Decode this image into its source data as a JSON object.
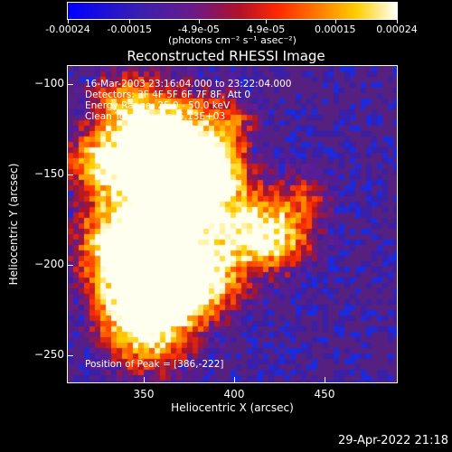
{
  "colorbar": {
    "tick_labels": [
      "-0.00024",
      "-0.00015",
      "-4.9e-05",
      "4.9e-05",
      "0.00015",
      "0.00024"
    ],
    "tick_values": [
      -0.00024,
      -0.00015,
      -4.9e-05,
      4.9e-05,
      0.00015,
      0.00024
    ],
    "range": [
      -0.00024,
      0.00024
    ],
    "unit_label": "(photons cm⁻² s⁻¹ asec⁻²)"
  },
  "chart_data": {
    "type": "heatmap",
    "title": "Reconstructed RHESSI Image",
    "xlabel": "Heliocentric X (arcsec)",
    "ylabel": "Heliocentric Y (arcsec)",
    "xlim": [
      308,
      490
    ],
    "ylim": [
      -265,
      -90
    ],
    "x_ticks": [
      350,
      400,
      450
    ],
    "y_ticks": [
      -100,
      -150,
      -200,
      -250
    ],
    "annotations": {
      "time": "16-Mar-2003 23:16:04.000 to 23:22:04.000",
      "detectors": "Detectors: 3F 4F 5F 6F 7F 8F, Att 0",
      "energy": "Energy Range: 25.0 - 50.0 keV",
      "clean": "Clean     Total counts: 5.13E+03",
      "peak": "Position of Peak = [386,-222]"
    },
    "peak": [
      386,
      -222
    ],
    "colors": [
      "#0000ff",
      "#3a1fb0",
      "#6a1a8a",
      "#b0102a",
      "#ff2a00",
      "#ff7a00",
      "#ffd000",
      "#ffffff"
    ]
  },
  "timestamp": "29-Apr-2022 21:18"
}
